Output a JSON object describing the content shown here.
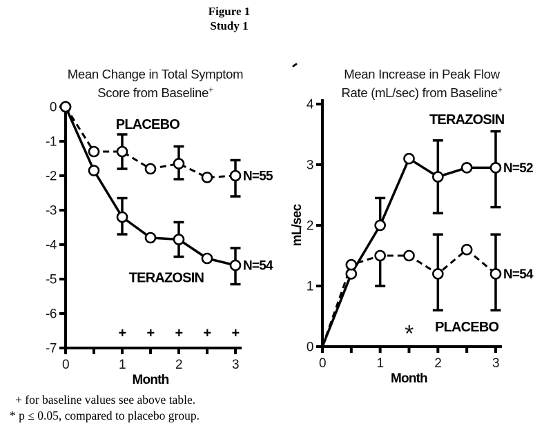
{
  "figure": {
    "title_line1": "Figure 1",
    "title_line2": "Study 1"
  },
  "footnotes": {
    "line1": "+ for baseline values see above table.",
    "line2": "* p ≤ 0.05, compared to placebo group."
  },
  "chart_data": [
    {
      "type": "line",
      "title_line1": "Mean Change in Total Symptom",
      "title_line2": "Score from Baseline",
      "title_superscript": "+",
      "xlabel": "Month",
      "ylabel": "",
      "x": [
        0,
        0.5,
        1,
        1.5,
        2,
        2.5,
        3
      ],
      "xlim": [
        0,
        3
      ],
      "ylim": [
        -7,
        0
      ],
      "xticks_major": [
        0,
        1,
        2,
        3
      ],
      "xticks_minor": [
        0.5,
        1.5,
        2.5
      ],
      "yticks": [
        0,
        -1,
        -2,
        -3,
        -4,
        -5,
        -6,
        -7
      ],
      "grid": false,
      "series": [
        {
          "name": "PLACEBO",
          "n_label": "N=55",
          "line_style": "dashed",
          "marker_at_first": true,
          "values": [
            0,
            -1.3,
            -1.3,
            -1.8,
            -1.65,
            -2.05,
            -2.0
          ],
          "error_bars": [
            {
              "x": 1,
              "low": -1.8,
              "high": -0.8,
              "caps": "both"
            },
            {
              "x": 2,
              "low": -2.1,
              "high": -1.15,
              "caps": "both"
            },
            {
              "x": 3,
              "low": -2.6,
              "high": -1.55,
              "caps": "both"
            }
          ],
          "name_pos": {
            "x": 1.45,
            "y": -0.5
          }
        },
        {
          "name": "TERAZOSIN",
          "n_label": "N=54",
          "line_style": "solid",
          "marker_at_first": true,
          "values": [
            0,
            -1.85,
            -3.2,
            -3.8,
            -3.85,
            -4.4,
            -4.6
          ],
          "error_bars": [
            {
              "x": 1,
              "low": -3.7,
              "high": -2.65,
              "caps": "both"
            },
            {
              "x": 2,
              "low": -4.35,
              "high": -3.35,
              "caps": "both"
            },
            {
              "x": 3,
              "low": -5.15,
              "high": -4.1,
              "caps": "both"
            }
          ],
          "name_pos": {
            "x": 1.78,
            "y": -4.95
          }
        }
      ],
      "annotations": [
        {
          "text": "+",
          "xs": [
            1,
            1.5,
            2,
            2.5,
            3
          ],
          "y": -6.55,
          "size": 20,
          "bold": true
        }
      ]
    },
    {
      "type": "line",
      "title_line1": "Mean Increase in Peak Flow",
      "title_line2": "Rate (mL/sec) from Baseline",
      "title_superscript": "+",
      "xlabel": "Month",
      "ylabel": "mL/sec",
      "x": [
        0,
        0.5,
        1,
        1.5,
        2,
        2.5,
        3
      ],
      "xlim": [
        0,
        3
      ],
      "ylim": [
        0,
        4
      ],
      "xticks_major": [
        0,
        1,
        2,
        3
      ],
      "xticks_minor": [
        0.5,
        1.5,
        2.5
      ],
      "yticks": [
        0,
        1,
        2,
        3,
        4
      ],
      "grid": false,
      "series": [
        {
          "name": "TERAZOSIN",
          "n_label": "N=52",
          "line_style": "solid",
          "marker_at_first": false,
          "values": [
            0,
            1.2,
            2.0,
            3.1,
            2.8,
            2.95,
            2.95
          ],
          "error_bars": [
            {
              "x": 1,
              "low": 2.0,
              "high": 2.45,
              "caps": "top"
            },
            {
              "x": 2,
              "low": 2.2,
              "high": 3.4,
              "caps": "both"
            },
            {
              "x": 3,
              "low": 2.3,
              "high": 3.55,
              "caps": "both"
            }
          ],
          "name_pos": {
            "x": 2.5,
            "y": 3.75
          }
        },
        {
          "name": "PLACEBO",
          "n_label": "N=54",
          "line_style": "dashed",
          "marker_at_first": false,
          "values": [
            0,
            1.35,
            1.5,
            1.5,
            1.2,
            1.6,
            1.2
          ],
          "error_bars": [
            {
              "x": 1,
              "low": 1.0,
              "high": 1.5,
              "caps": "bottom"
            },
            {
              "x": 2,
              "low": 0.6,
              "high": 1.85,
              "caps": "both"
            },
            {
              "x": 3,
              "low": 0.6,
              "high": 1.85,
              "caps": "both"
            }
          ],
          "name_pos": {
            "x": 2.5,
            "y": 0.33
          }
        }
      ],
      "annotations": [
        {
          "text": "*",
          "xs": [
            1.5
          ],
          "y": 0.28,
          "size": 34,
          "bold": false
        }
      ]
    }
  ]
}
